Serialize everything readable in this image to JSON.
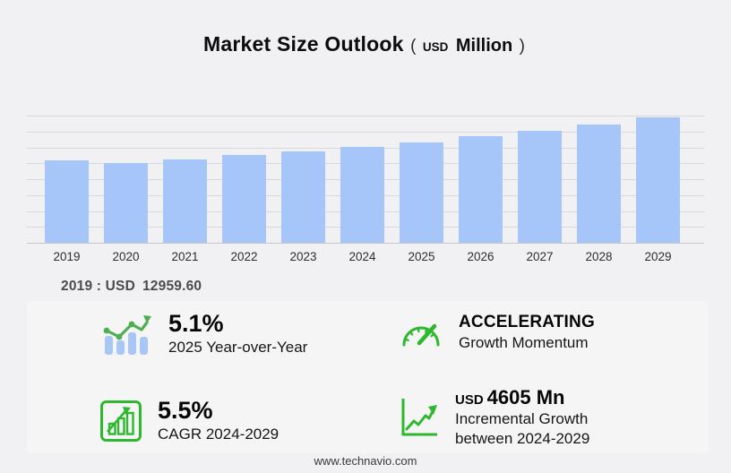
{
  "title": {
    "main": "Market Size Outlook",
    "paren_open": "(",
    "unit_small": "USD",
    "unit_large": "Million",
    "paren_close": ")"
  },
  "chart_data": {
    "type": "bar",
    "title": "Market Size Outlook (USD Million)",
    "categories": [
      "2019",
      "2020",
      "2021",
      "2022",
      "2023",
      "2024",
      "2025",
      "2026",
      "2027",
      "2028",
      "2029"
    ],
    "values": [
      12959.6,
      12440,
      13000,
      13750,
      14350,
      15002,
      15767,
      16630,
      17550,
      18560,
      19607
    ],
    "xlabel": "",
    "ylabel": "",
    "ylim": [
      0,
      19900
    ],
    "grid": true,
    "legend": false,
    "bar_color": "#a6c6fa",
    "callout": "2019 : USD 12959.60"
  },
  "annotation": {
    "label": "2019 : USD",
    "value": "12959.60"
  },
  "stats": {
    "yoy": {
      "value": "5.1%",
      "label": "2025 Year-over-Year",
      "icon": "bar-line-growth-icon"
    },
    "momentum": {
      "value": "ACCELERATING",
      "label": "Growth Momentum",
      "icon": "gauge-icon"
    },
    "cagr": {
      "value": "5.5%",
      "label": "CAGR 2024-2029",
      "icon": "boxed-bars-arrow-icon"
    },
    "incremental": {
      "prefix": "USD",
      "value": "4605 Mn",
      "label_line1": "Incremental Growth",
      "label_line2": "between 2024-2029",
      "icon": "axes-trend-arrow-icon"
    }
  },
  "footer": {
    "website": "www.technavio.com"
  },
  "colors": {
    "bar_blue": "#a6c6fa",
    "accent_green": "#2eb82e",
    "line_green": "#4caf50",
    "page_bg": "#f1f1f3",
    "panel_bg": "#f5f5f6",
    "grid_line": "#d8d8da"
  }
}
